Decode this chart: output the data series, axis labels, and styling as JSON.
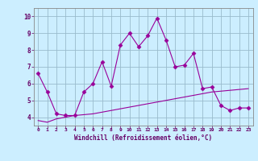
{
  "x": [
    0,
    1,
    2,
    3,
    4,
    5,
    6,
    7,
    8,
    9,
    10,
    11,
    12,
    13,
    14,
    15,
    16,
    17,
    18,
    19,
    20,
    21,
    22,
    23
  ],
  "line1_y": [
    6.6,
    5.5,
    4.2,
    4.1,
    4.1,
    5.5,
    6.0,
    7.3,
    5.85,
    8.3,
    9.0,
    8.2,
    8.85,
    9.9,
    8.6,
    7.0,
    7.1,
    7.8,
    5.7,
    5.8,
    4.7,
    4.4,
    4.55,
    4.55
  ],
  "line2_y": [
    3.8,
    3.7,
    3.9,
    4.0,
    4.1,
    4.15,
    4.2,
    4.3,
    4.4,
    4.5,
    4.6,
    4.7,
    4.8,
    4.9,
    5.0,
    5.1,
    5.2,
    5.3,
    5.4,
    5.5,
    5.55,
    5.6,
    5.65,
    5.7
  ],
  "line_color": "#990099",
  "bg_color": "#cceeff",
  "grid_color": "#99bbcc",
  "xlabel": "Windchill (Refroidissement éolien,°C)",
  "xlim": [
    -0.5,
    23.5
  ],
  "ylim": [
    3.5,
    10.5
  ],
  "yticks": [
    4,
    5,
    6,
    7,
    8,
    9,
    10
  ],
  "xticks": [
    0,
    1,
    2,
    3,
    4,
    5,
    6,
    7,
    8,
    9,
    10,
    11,
    12,
    13,
    14,
    15,
    16,
    17,
    18,
    19,
    20,
    21,
    22,
    23
  ],
  "xlabel_color": "#660066",
  "axis_color": "#888888",
  "tick_color": "#660066",
  "marker": "D",
  "markersize": 2.5,
  "linewidth": 0.8
}
